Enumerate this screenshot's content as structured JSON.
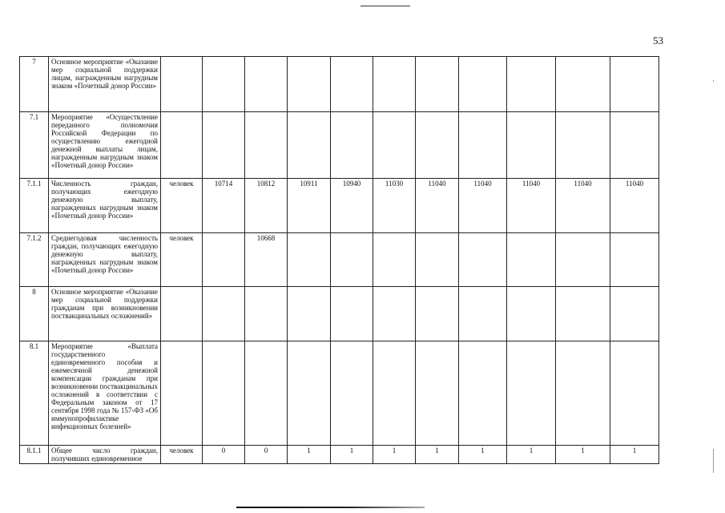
{
  "page_number": "53",
  "rows": [
    {
      "num": "7",
      "desc": "Основное мероприятие «Оказание мер социальной поддержки лицам, награжденным нагрудным знаком «Почетный донор России»",
      "unit": "",
      "values": [
        "",
        "",
        "",
        "",
        "",
        "",
        "",
        "",
        "",
        ""
      ]
    },
    {
      "num": "7.1",
      "desc": "Мероприятие «Осуществление переданного полномочия Российской Федерации по осуществлению ежегодной денежной выплаты лицам, награжденным нагрудным знаком «Почетный донор России»",
      "unit": "",
      "values": [
        "",
        "",
        "",
        "",
        "",
        "",
        "",
        "",
        "",
        ""
      ]
    },
    {
      "num": "7.1.1",
      "desc": "Численность граждан, получающих ежегодную денежную выплату, награжденных нагрудным знаком «Почетный донор России»",
      "unit": "человек",
      "values": [
        "10714",
        "10812",
        "10911",
        "10940",
        "11030",
        "11040",
        "11040",
        "11040",
        "11040",
        "11040"
      ]
    },
    {
      "num": "7.1.2",
      "desc": "Среднегодовая численность граждан, получающих ежегодную денежную выплату, награжденных нагрудным знаком «Почетный донор России»",
      "unit": "человек",
      "values": [
        "",
        "10668",
        "",
        "",
        "",
        "",
        "",
        "",
        "",
        ""
      ]
    },
    {
      "num": "8",
      "desc": "Основное мероприятие «Оказание мер социальной поддержки гражданам при возникновении поствакцинальных осложнений»",
      "unit": "",
      "values": [
        "",
        "",
        "",
        "",
        "",
        "",
        "",
        "",
        "",
        ""
      ]
    },
    {
      "num": "8.1",
      "desc": "Мероприятие «Выплата государственного единовременного пособия и ежемесячной денежной компенсации гражданам при возникновении поствакцинальных осложнений в соответствии с Федеральным законом от 17 сентября 1998 года № 157-ФЗ «Об иммунопрофилактике инфекционных болезней»",
      "unit": "",
      "values": [
        "",
        "",
        "",
        "",
        "",
        "",
        "",
        "",
        "",
        ""
      ]
    },
    {
      "num": "8.1.1",
      "desc": "Общее число граждан, получивших единовременное",
      "unit": "человек",
      "values": [
        "0",
        "0",
        "1",
        "1",
        "1",
        "1",
        "1",
        "1",
        "1",
        "1"
      ]
    }
  ]
}
